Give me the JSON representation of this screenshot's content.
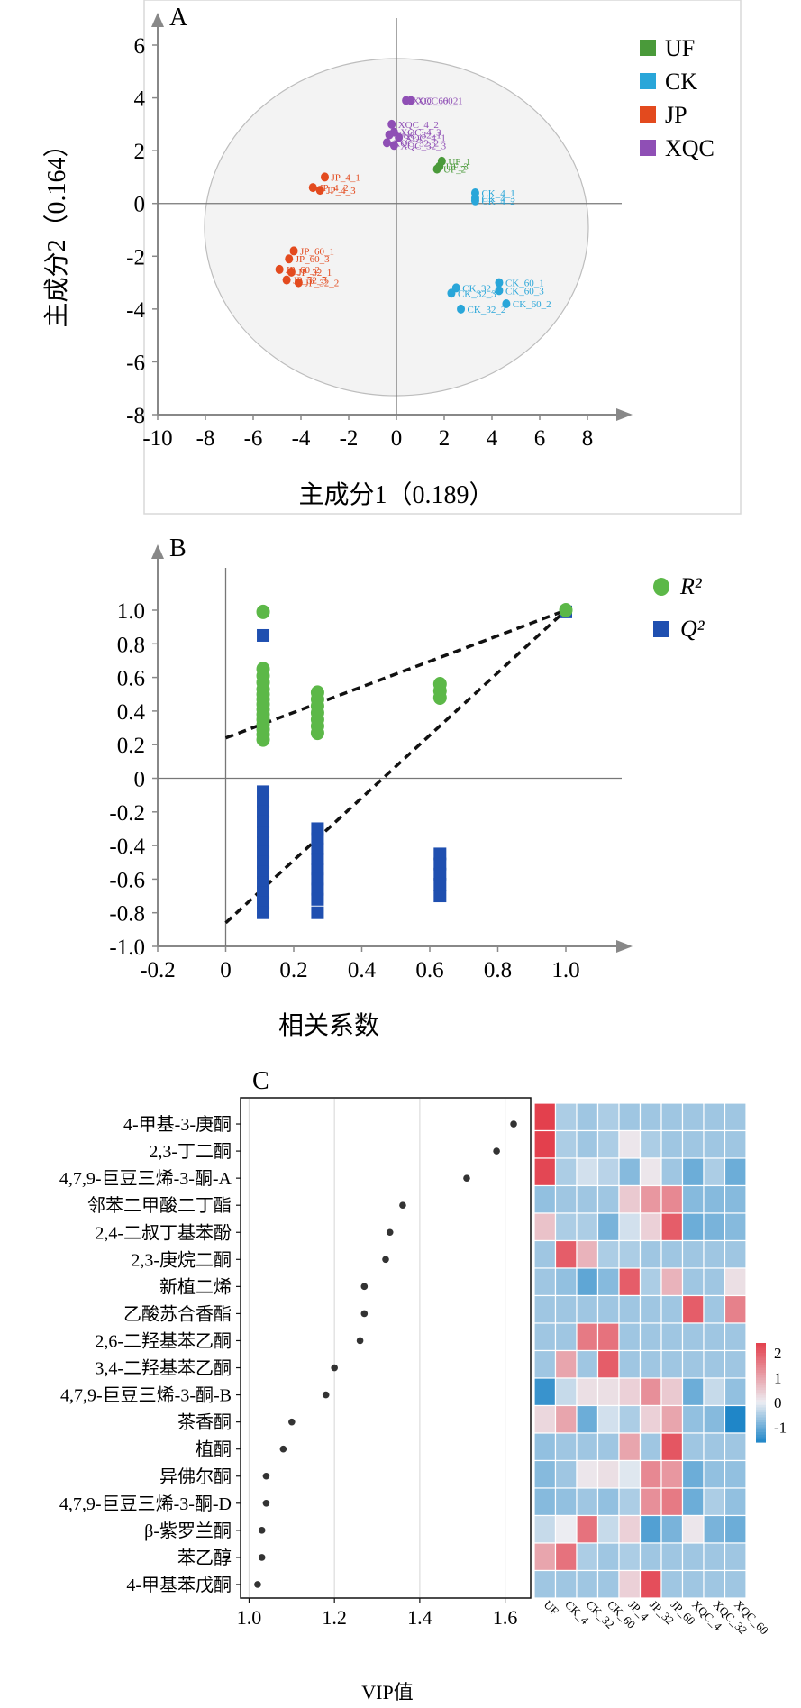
{
  "panels": {
    "a": "A",
    "b": "B",
    "c": "C"
  },
  "chart_data": [
    {
      "type": "scatter",
      "panel": "A",
      "xlabel": "主成分1（0.189）",
      "ylabel": "主成分2（0.164）",
      "xlim": [
        -10,
        8
      ],
      "ylim": [
        -8,
        6
      ],
      "xticks": [
        "-10",
        "-8",
        "-6",
        "-4",
        "-2",
        "0",
        "2",
        "4",
        "6",
        "8"
      ],
      "yticks": [
        "-8",
        "-6",
        "-4",
        "-2",
        "0",
        "2",
        "4",
        "6"
      ],
      "grid": false,
      "legend_position": "top-right",
      "colors": {
        "UF": "#4a9a3a",
        "CK": "#29a6d9",
        "JP": "#e34a1e",
        "XQC": "#8f4fb5"
      },
      "series": [
        {
          "name": "UF",
          "points": [
            {
              "label": "UF_3",
              "x": 1.8,
              "y": 1.4
            },
            {
              "label": "UF_1",
              "x": 1.9,
              "y": 1.6
            },
            {
              "label": "UF_2",
              "x": 1.7,
              "y": 1.3
            }
          ]
        },
        {
          "name": "CK",
          "points": [
            {
              "label": "CK_4_1",
              "x": 3.3,
              "y": 0.4
            },
            {
              "label": "CK_4_3",
              "x": 3.3,
              "y": 0.2
            },
            {
              "label": "CK_4_2",
              "x": 3.3,
              "y": 0.1
            },
            {
              "label": "CK_32_1",
              "x": 2.5,
              "y": -3.2
            },
            {
              "label": "CK_32_3",
              "x": 2.3,
              "y": -3.4
            },
            {
              "label": "CK_32_2",
              "x": 2.7,
              "y": -4.0
            },
            {
              "label": "CK_60_1",
              "x": 4.3,
              "y": -3.0
            },
            {
              "label": "CK_60_3",
              "x": 4.3,
              "y": -3.3
            },
            {
              "label": "CK_60_2",
              "x": 4.6,
              "y": -3.8
            }
          ]
        },
        {
          "name": "JP",
          "points": [
            {
              "label": "JP_4_1",
              "x": -3.0,
              "y": 1.0
            },
            {
              "label": "JP_4_2",
              "x": -3.5,
              "y": 0.6
            },
            {
              "label": "JP_4_3",
              "x": -3.2,
              "y": 0.5
            },
            {
              "label": "JP_60_1",
              "x": -4.3,
              "y": -1.8
            },
            {
              "label": "JP_60_3",
              "x": -4.5,
              "y": -2.1
            },
            {
              "label": "JP_60_2",
              "x": -4.9,
              "y": -2.5
            },
            {
              "label": "JP_32_1",
              "x": -4.4,
              "y": -2.6
            },
            {
              "label": "JP_32_2",
              "x": -4.1,
              "y": -3.0
            },
            {
              "label": "JP_32_3",
              "x": -4.6,
              "y": -2.9
            }
          ]
        },
        {
          "name": "XQC",
          "points": [
            {
              "label": "XQC_60_2",
              "x": 0.4,
              "y": 3.9
            },
            {
              "label": "XQC_60_1",
              "x": 0.6,
              "y": 3.9
            },
            {
              "label": "XQC_4_2",
              "x": -0.2,
              "y": 3.0
            },
            {
              "label": "XQC_4_3",
              "x": -0.1,
              "y": 2.7
            },
            {
              "label": "XQC_32_1",
              "x": -0.3,
              "y": 2.6
            },
            {
              "label": "XQC_4_1",
              "x": 0.1,
              "y": 2.5
            },
            {
              "label": "XQC_32_2",
              "x": -0.4,
              "y": 2.3
            },
            {
              "label": "XQC_32_3",
              "x": -0.1,
              "y": 2.2
            }
          ]
        }
      ]
    },
    {
      "type": "scatter",
      "panel": "B",
      "xlabel": "相关系数",
      "xlim": [
        -0.2,
        1.0
      ],
      "ylim": [
        -1.0,
        1.0
      ],
      "xticks": [
        "-0.2",
        "0",
        "0.2",
        "0.4",
        "0.6",
        "0.8",
        "1.0"
      ],
      "yticks": [
        "-1.0",
        "-0.8",
        "-0.6",
        "-0.4",
        "-0.2",
        "0",
        "0.2",
        "0.4",
        "0.6",
        "0.8",
        "1.0"
      ],
      "legend_position": "top-right",
      "colors": {
        "R2": "#5cb848",
        "Q2": "#1f4fb0"
      },
      "series": [
        {
          "name": "R²",
          "marker": "circle",
          "points": [
            {
              "x": 0.11,
              "y": 0.99
            },
            {
              "x": 0.11,
              "y": 0.65
            },
            {
              "x": 0.11,
              "y": 0.61
            },
            {
              "x": 0.11,
              "y": 0.57
            },
            {
              "x": 0.11,
              "y": 0.53
            },
            {
              "x": 0.11,
              "y": 0.5
            },
            {
              "x": 0.11,
              "y": 0.47
            },
            {
              "x": 0.11,
              "y": 0.44
            },
            {
              "x": 0.11,
              "y": 0.41
            },
            {
              "x": 0.11,
              "y": 0.38
            },
            {
              "x": 0.11,
              "y": 0.35
            },
            {
              "x": 0.11,
              "y": 0.32
            },
            {
              "x": 0.11,
              "y": 0.29
            },
            {
              "x": 0.11,
              "y": 0.26
            },
            {
              "x": 0.11,
              "y": 0.23
            },
            {
              "x": 0.27,
              "y": 0.51
            },
            {
              "x": 0.27,
              "y": 0.47
            },
            {
              "x": 0.27,
              "y": 0.43
            },
            {
              "x": 0.27,
              "y": 0.39
            },
            {
              "x": 0.27,
              "y": 0.35
            },
            {
              "x": 0.27,
              "y": 0.31
            },
            {
              "x": 0.27,
              "y": 0.27
            },
            {
              "x": 0.63,
              "y": 0.56
            },
            {
              "x": 0.63,
              "y": 0.52
            },
            {
              "x": 0.63,
              "y": 0.48
            },
            {
              "x": 1.0,
              "y": 1.0
            }
          ]
        },
        {
          "name": "Q²",
          "marker": "square",
          "points": [
            {
              "x": 0.11,
              "y": 0.85
            },
            {
              "x": 0.11,
              "y": -0.08
            },
            {
              "x": 0.11,
              "y": -0.14
            },
            {
              "x": 0.11,
              "y": -0.2
            },
            {
              "x": 0.11,
              "y": -0.26
            },
            {
              "x": 0.11,
              "y": -0.32
            },
            {
              "x": 0.11,
              "y": -0.38
            },
            {
              "x": 0.11,
              "y": -0.44
            },
            {
              "x": 0.11,
              "y": -0.5
            },
            {
              "x": 0.11,
              "y": -0.56
            },
            {
              "x": 0.11,
              "y": -0.62
            },
            {
              "x": 0.11,
              "y": -0.68
            },
            {
              "x": 0.11,
              "y": -0.74
            },
            {
              "x": 0.11,
              "y": -0.8
            },
            {
              "x": 0.27,
              "y": -0.3
            },
            {
              "x": 0.27,
              "y": -0.36
            },
            {
              "x": 0.27,
              "y": -0.42
            },
            {
              "x": 0.27,
              "y": -0.48
            },
            {
              "x": 0.27,
              "y": -0.54
            },
            {
              "x": 0.27,
              "y": -0.6
            },
            {
              "x": 0.27,
              "y": -0.66
            },
            {
              "x": 0.27,
              "y": -0.72
            },
            {
              "x": 0.27,
              "y": -0.8
            },
            {
              "x": 0.63,
              "y": -0.45
            },
            {
              "x": 0.63,
              "y": -0.51
            },
            {
              "x": 0.63,
              "y": -0.57
            },
            {
              "x": 0.63,
              "y": -0.63
            },
            {
              "x": 0.63,
              "y": -0.7
            },
            {
              "x": 1.0,
              "y": 0.99
            }
          ]
        }
      ],
      "regression_lines": [
        {
          "series": "R²",
          "intercept": 0.24,
          "end": [
            1.0,
            1.0
          ]
        },
        {
          "series": "Q²",
          "intercept": -0.86,
          "end": [
            1.0,
            1.0
          ]
        }
      ]
    },
    {
      "type": "scatter",
      "panel": "C",
      "xlabel": "VIP值",
      "xlim": [
        0.98,
        1.66
      ],
      "xticks": [
        "1.0",
        "1.2",
        "1.4",
        "1.6"
      ],
      "categories": [
        "4-甲基-3-庚酮",
        "2,3-丁二酮",
        "4,7,9-巨豆三烯-3-酮-A",
        "邻苯二甲酸二丁酯",
        "2,4-二叔丁基苯酚",
        "2,3-庚烷二酮",
        "新植二烯",
        "乙酸苏合香酯",
        "2,6-二羟基苯乙酮",
        "3,4-二羟基苯乙酮",
        "4,7,9-巨豆三烯-3-酮-B",
        "茶香酮",
        "植酮",
        "异佛尔酮",
        "4,7,9-巨豆三烯-3-酮-D",
        "β-紫罗兰酮",
        "苯乙醇",
        "4-甲基苯戊酮"
      ],
      "values": [
        1.62,
        1.58,
        1.51,
        1.36,
        1.33,
        1.32,
        1.27,
        1.27,
        1.26,
        1.2,
        1.18,
        1.1,
        1.08,
        1.04,
        1.04,
        1.03,
        1.03,
        1.02
      ],
      "heatmap": {
        "columns": [
          "UF",
          "CK_4",
          "CK_32",
          "CK_60",
          "JP_4",
          "JP_32",
          "JP_60",
          "XQC_4",
          "XQC_32",
          "XQC_60"
        ],
        "colorbar_ticks": [
          "2",
          "1",
          "0",
          "-1"
        ],
        "colorbar_range": [
          -1.6,
          2.4
        ],
        "colors": {
          "low": "#1f86c8",
          "mid": "#ecedf2",
          "high": "#e3404d"
        },
        "values": [
          [
            2.4,
            -0.5,
            -0.6,
            -0.5,
            -0.6,
            -0.6,
            -0.6,
            -0.6,
            -0.6,
            -0.6
          ],
          [
            2.4,
            -0.5,
            -0.6,
            -0.5,
            0.1,
            -0.5,
            -0.6,
            -0.6,
            -0.6,
            -0.6
          ],
          [
            2.3,
            -0.5,
            -0.2,
            -0.4,
            -0.8,
            0.1,
            -0.6,
            -1.0,
            -0.5,
            -1.0
          ],
          [
            -0.7,
            -0.6,
            -0.6,
            -0.6,
            0.5,
            1.2,
            1.4,
            -0.8,
            -0.8,
            -0.8
          ],
          [
            0.6,
            -0.5,
            -0.5,
            -0.9,
            -0.2,
            0.4,
            2.0,
            -1.0,
            -0.9,
            -0.8
          ],
          [
            -0.6,
            2.0,
            0.8,
            -0.5,
            -0.5,
            -0.6,
            -0.6,
            -0.6,
            -0.6,
            -0.6
          ],
          [
            -0.6,
            -0.7,
            -1.1,
            -0.8,
            2.0,
            -0.5,
            0.8,
            -0.6,
            -0.6,
            0.2
          ],
          [
            -0.6,
            -0.6,
            -0.6,
            -0.6,
            -0.6,
            -0.6,
            -0.6,
            2.0,
            -0.6,
            1.5
          ],
          [
            -0.6,
            -0.6,
            1.6,
            1.7,
            -0.6,
            -0.6,
            -0.6,
            -0.6,
            -0.6,
            -0.6
          ],
          [
            -0.6,
            1.0,
            -0.6,
            2.0,
            -0.6,
            -0.6,
            -0.6,
            -0.6,
            -0.6,
            -0.6
          ],
          [
            -1.4,
            -0.3,
            0.2,
            0.2,
            0.4,
            1.3,
            0.5,
            -1.0,
            -0.3,
            -0.7
          ],
          [
            0.3,
            1.0,
            -1.0,
            -0.2,
            -0.5,
            0.4,
            1.0,
            -0.7,
            -0.8,
            -1.6
          ],
          [
            -0.7,
            -0.6,
            -0.6,
            -0.6,
            1.0,
            -0.6,
            2.1,
            -0.6,
            -0.6,
            -0.6
          ],
          [
            -0.8,
            -0.6,
            0.1,
            0.2,
            -0.1,
            1.4,
            1.2,
            -1.0,
            -0.7,
            -0.7
          ],
          [
            -0.8,
            -0.7,
            -0.6,
            -0.7,
            -0.5,
            1.3,
            1.6,
            -1.0,
            -0.5,
            -0.7
          ],
          [
            -0.3,
            0.0,
            1.7,
            -0.3,
            0.4,
            -1.2,
            -0.9,
            0.1,
            -0.9,
            -1.0
          ],
          [
            1.0,
            1.7,
            -0.5,
            -0.6,
            -0.5,
            -0.6,
            -0.6,
            -0.6,
            -0.6,
            -0.6
          ],
          [
            -0.6,
            -0.6,
            -0.6,
            -0.6,
            0.4,
            2.2,
            -0.6,
            -0.6,
            -0.6,
            -0.6
          ]
        ]
      }
    }
  ]
}
